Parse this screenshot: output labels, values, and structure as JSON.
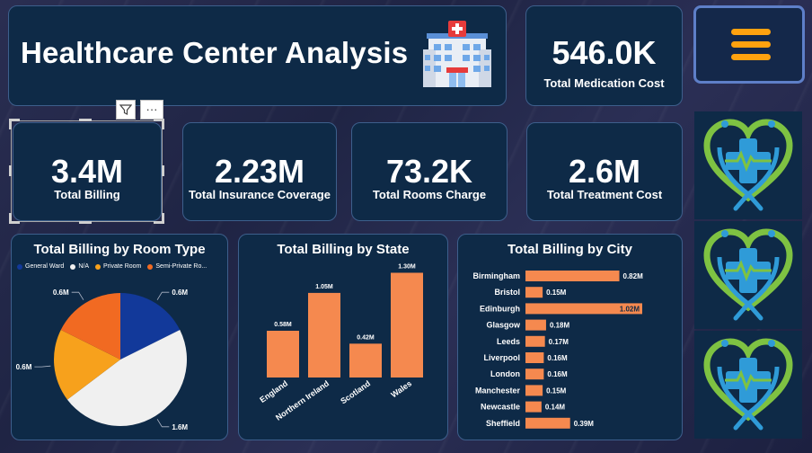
{
  "header": {
    "title": "Healthcare Center Analysis",
    "icon": "hospital-icon"
  },
  "kpis": {
    "medication": {
      "value": "546.0K",
      "label": "Total Medication Cost"
    },
    "billing": {
      "value": "3.4M",
      "label": "Total Billing"
    },
    "insurance": {
      "value": "2.23M",
      "label": "Total Insurance Coverage"
    },
    "rooms": {
      "value": "73.2K",
      "label": "Total Rooms Charge"
    },
    "treatment": {
      "value": "2.6M",
      "label": "Total Treatment Cost"
    }
  },
  "menu": {
    "icon": "hamburger-menu-icon",
    "color": "#ffa20f"
  },
  "visual_header": {
    "filter_icon": "filter-icon",
    "more_icon": "more-options-icon",
    "more_text": "···"
  },
  "logos": {
    "icon": "heart-stethoscope-cross-icon",
    "count": 3
  },
  "colors": {
    "bar": "#f5894f",
    "card": "#0e2a47",
    "border": "#3d5f8c"
  },
  "chart_data": [
    {
      "type": "pie",
      "title": "Total Billing by Room Type",
      "legend": "top",
      "categories": [
        "General Ward",
        "N/A",
        "Private Room",
        "Semi-Private Ro..."
      ],
      "values": [
        0.6,
        1.6,
        0.6,
        0.6
      ],
      "labels": [
        "0.6M",
        "1.6M",
        "0.6M",
        "0.6M"
      ],
      "colors": [
        "#12399a",
        "#f0f0f0",
        "#f7a11c",
        "#f16a22"
      ]
    },
    {
      "type": "bar",
      "title": "Total Billing by State",
      "categories": [
        "England",
        "Northern Ireland",
        "Scotland",
        "Wales"
      ],
      "values": [
        0.58,
        1.05,
        0.42,
        1.3
      ],
      "labels": [
        "0.58M",
        "1.05M",
        "0.42M",
        "1.30M"
      ],
      "ylim": [
        0,
        1.35
      ]
    },
    {
      "type": "bar",
      "orientation": "horizontal",
      "title": "Total Billing by City",
      "categories": [
        "Birmingham",
        "Bristol",
        "Edinburgh",
        "Glasgow",
        "Leeds",
        "Liverpool",
        "London",
        "Manchester",
        "Newcastle",
        "Sheffield"
      ],
      "values": [
        0.82,
        0.15,
        1.02,
        0.18,
        0.17,
        0.16,
        0.16,
        0.15,
        0.14,
        0.39
      ],
      "labels": [
        "0.82M",
        "0.15M",
        "1.02M",
        "0.18M",
        "0.17M",
        "0.16M",
        "0.16M",
        "0.15M",
        "0.14M",
        "0.39M"
      ],
      "xlim": [
        0,
        1.02
      ]
    }
  ]
}
